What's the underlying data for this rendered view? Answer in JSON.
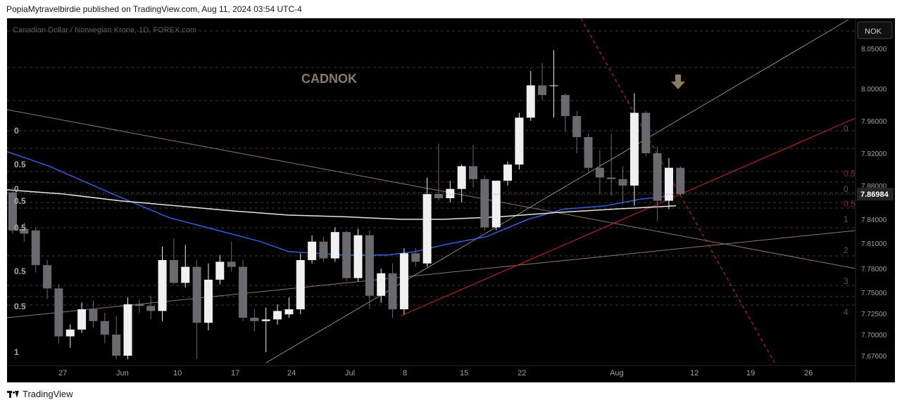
{
  "header": {
    "published_text": "PopiaMytravelbirdie published on TradingView.com, Aug 11, 2024 03:54 UTC-4"
  },
  "footer": {
    "brand": "TradingView"
  },
  "chart_data": {
    "type": "candlestick",
    "title": "Canadian Dollar / Norwegian Krone, 1D, FOREX.com",
    "watermark": "CADNOK",
    "currency_label": "NOK",
    "current_price": "7.86984",
    "y_ticks": [
      "8.05000",
      "8.00000",
      "7.96000",
      "7.92000",
      "7.88000",
      "7.84000",
      "7.81000",
      "7.78000",
      "7.75000",
      "7.72500",
      "7.70000",
      "7.67600"
    ],
    "x_ticks": [
      "27",
      "Jun",
      "10",
      "17",
      "24",
      "Jul",
      "8",
      "15",
      "22",
      "Aug",
      "12",
      "19",
      "26"
    ],
    "fib_labels_left": [
      "0",
      "0.5",
      "0",
      "0.5",
      "0.5",
      "0.5",
      "0.5",
      "1"
    ],
    "fib_labels_right": [
      "0",
      "0.5",
      "0",
      "0.5",
      "1",
      "2",
      "3",
      "4"
    ],
    "colors": {
      "background": "#000000",
      "bull_candle": "#f0f0f0",
      "bear_candle": "#6a6a6e",
      "ma_blue": "#2f5fe0",
      "ma_white": "#e8e6dc",
      "trend_red": "#b52020",
      "trend_tan": "#8a7a66",
      "trend_gray": "#8c8c8c",
      "price_tag": "#1e1e1e"
    },
    "candles": [
      {
        "date": "May 21",
        "o": 7.872,
        "h": 7.878,
        "l": 7.822,
        "c": 7.826
      },
      {
        "date": "May 22",
        "o": 7.828,
        "h": 7.836,
        "l": 7.812,
        "c": 7.822
      },
      {
        "date": "May 23",
        "o": 7.826,
        "h": 7.83,
        "l": 7.775,
        "c": 7.784
      },
      {
        "date": "May 24",
        "o": 7.784,
        "h": 7.79,
        "l": 7.742,
        "c": 7.755
      },
      {
        "date": "May 27",
        "o": 7.755,
        "h": 7.76,
        "l": 7.69,
        "c": 7.698
      },
      {
        "date": "May 28",
        "o": 7.698,
        "h": 7.712,
        "l": 7.685,
        "c": 7.706
      },
      {
        "date": "May 29",
        "o": 7.706,
        "h": 7.738,
        "l": 7.702,
        "c": 7.73
      },
      {
        "date": "May 30",
        "o": 7.73,
        "h": 7.74,
        "l": 7.708,
        "c": 7.716
      },
      {
        "date": "May 31",
        "o": 7.716,
        "h": 7.726,
        "l": 7.69,
        "c": 7.7
      },
      {
        "date": "Jun 3",
        "o": 7.7,
        "h": 7.722,
        "l": 7.672,
        "c": 7.676
      },
      {
        "date": "Jun 4",
        "o": 7.676,
        "h": 7.744,
        "l": 7.672,
        "c": 7.736
      },
      {
        "date": "Jun 5",
        "o": 7.736,
        "h": 7.742,
        "l": 7.726,
        "c": 7.734
      },
      {
        "date": "Jun 6",
        "o": 7.734,
        "h": 7.746,
        "l": 7.718,
        "c": 7.728
      },
      {
        "date": "Jun 7",
        "o": 7.728,
        "h": 7.806,
        "l": 7.716,
        "c": 7.79
      },
      {
        "date": "Jun 10",
        "o": 7.79,
        "h": 7.816,
        "l": 7.76,
        "c": 7.762
      },
      {
        "date": "Jun 11",
        "o": 7.762,
        "h": 7.808,
        "l": 7.756,
        "c": 7.782
      },
      {
        "date": "Jun 12",
        "o": 7.782,
        "h": 7.79,
        "l": 7.672,
        "c": 7.714
      },
      {
        "date": "Jun 13",
        "o": 7.714,
        "h": 7.786,
        "l": 7.705,
        "c": 7.766
      },
      {
        "date": "Jun 14",
        "o": 7.766,
        "h": 7.796,
        "l": 7.76,
        "c": 7.788
      },
      {
        "date": "Jun 17",
        "o": 7.788,
        "h": 7.812,
        "l": 7.776,
        "c": 7.782
      },
      {
        "date": "Jun 18",
        "o": 7.782,
        "h": 7.79,
        "l": 7.716,
        "c": 7.72
      },
      {
        "date": "Jun 19",
        "o": 7.72,
        "h": 7.73,
        "l": 7.704,
        "c": 7.716
      },
      {
        "date": "Jun 20",
        "o": 7.716,
        "h": 7.732,
        "l": 7.68,
        "c": 7.718
      },
      {
        "date": "Jun 21",
        "o": 7.718,
        "h": 7.736,
        "l": 7.712,
        "c": 7.728
      },
      {
        "date": "Jun 24",
        "o": 7.724,
        "h": 7.744,
        "l": 7.72,
        "c": 7.73
      },
      {
        "date": "Jun 25",
        "o": 7.73,
        "h": 7.798,
        "l": 7.724,
        "c": 7.79
      },
      {
        "date": "Jun 26",
        "o": 7.79,
        "h": 7.82,
        "l": 7.786,
        "c": 7.812
      },
      {
        "date": "Jun 27",
        "o": 7.812,
        "h": 7.818,
        "l": 7.788,
        "c": 7.792
      },
      {
        "date": "Jun 28",
        "o": 7.792,
        "h": 7.83,
        "l": 7.788,
        "c": 7.824
      },
      {
        "date": "Jul 1",
        "o": 7.824,
        "h": 7.826,
        "l": 7.764,
        "c": 7.768
      },
      {
        "date": "Jul 2",
        "o": 7.768,
        "h": 7.828,
        "l": 7.764,
        "c": 7.82
      },
      {
        "date": "Jul 3",
        "o": 7.82,
        "h": 7.826,
        "l": 7.73,
        "c": 7.746
      },
      {
        "date": "Jul 4",
        "o": 7.746,
        "h": 7.78,
        "l": 7.738,
        "c": 7.774
      },
      {
        "date": "Jul 5",
        "o": 7.774,
        "h": 7.786,
        "l": 7.72,
        "c": 7.73
      },
      {
        "date": "Jul 8",
        "o": 7.73,
        "h": 7.804,
        "l": 7.724,
        "c": 7.798
      },
      {
        "date": "Jul 9",
        "o": 7.798,
        "h": 7.804,
        "l": 7.782,
        "c": 7.788
      },
      {
        "date": "Jul 10",
        "o": 7.786,
        "h": 7.89,
        "l": 7.782,
        "c": 7.87
      },
      {
        "date": "Jul 11",
        "o": 7.87,
        "h": 7.932,
        "l": 7.862,
        "c": 7.865
      },
      {
        "date": "Jul 12",
        "o": 7.865,
        "h": 7.886,
        "l": 7.86,
        "c": 7.876
      },
      {
        "date": "Jul 15",
        "o": 7.876,
        "h": 7.906,
        "l": 7.86,
        "c": 7.904
      },
      {
        "date": "Jul 16",
        "o": 7.904,
        "h": 7.93,
        "l": 7.878,
        "c": 7.888
      },
      {
        "date": "Jul 17",
        "o": 7.888,
        "h": 7.892,
        "l": 7.826,
        "c": 7.83
      },
      {
        "date": "Jul 18",
        "o": 7.83,
        "h": 7.886,
        "l": 7.826,
        "c": 7.886
      },
      {
        "date": "Jul 19",
        "o": 7.886,
        "h": 7.91,
        "l": 7.88,
        "c": 7.906
      },
      {
        "date": "Jul 22",
        "o": 7.906,
        "h": 7.97,
        "l": 7.9,
        "c": 7.964
      },
      {
        "date": "Jul 23",
        "o": 7.964,
        "h": 8.022,
        "l": 7.96,
        "c": 8.004
      },
      {
        "date": "Jul 24",
        "o": 8.004,
        "h": 8.032,
        "l": 7.986,
        "c": 7.992
      },
      {
        "date": "Jul 25",
        "o": 8.004,
        "h": 8.048,
        "l": 7.964,
        "c": 8.004
      },
      {
        "date": "Jul 26",
        "o": 7.992,
        "h": 7.994,
        "l": 7.946,
        "c": 7.966
      },
      {
        "date": "Jul 29",
        "o": 7.966,
        "h": 7.972,
        "l": 7.92,
        "c": 7.94
      },
      {
        "date": "Jul 30",
        "o": 7.94,
        "h": 7.944,
        "l": 7.898,
        "c": 7.902
      },
      {
        "date": "Jul 31",
        "o": 7.902,
        "h": 7.924,
        "l": 7.87,
        "c": 7.89
      },
      {
        "date": "Aug 1",
        "o": 7.89,
        "h": 7.944,
        "l": 7.868,
        "c": 7.888
      },
      {
        "date": "Aug 2",
        "o": 7.888,
        "h": 7.904,
        "l": 7.858,
        "c": 7.88
      },
      {
        "date": "Aug 5",
        "o": 7.88,
        "h": 7.994,
        "l": 7.856,
        "c": 7.97
      },
      {
        "date": "Aug 6",
        "o": 7.97,
        "h": 7.972,
        "l": 7.916,
        "c": 7.92
      },
      {
        "date": "Aug 7",
        "o": 7.92,
        "h": 7.928,
        "l": 7.838,
        "c": 7.862
      },
      {
        "date": "Aug 8",
        "o": 7.862,
        "h": 7.914,
        "l": 7.852,
        "c": 7.902
      },
      {
        "date": "Aug 9",
        "o": 7.902,
        "h": 7.904,
        "l": 7.868,
        "c": 7.87
      }
    ]
  }
}
